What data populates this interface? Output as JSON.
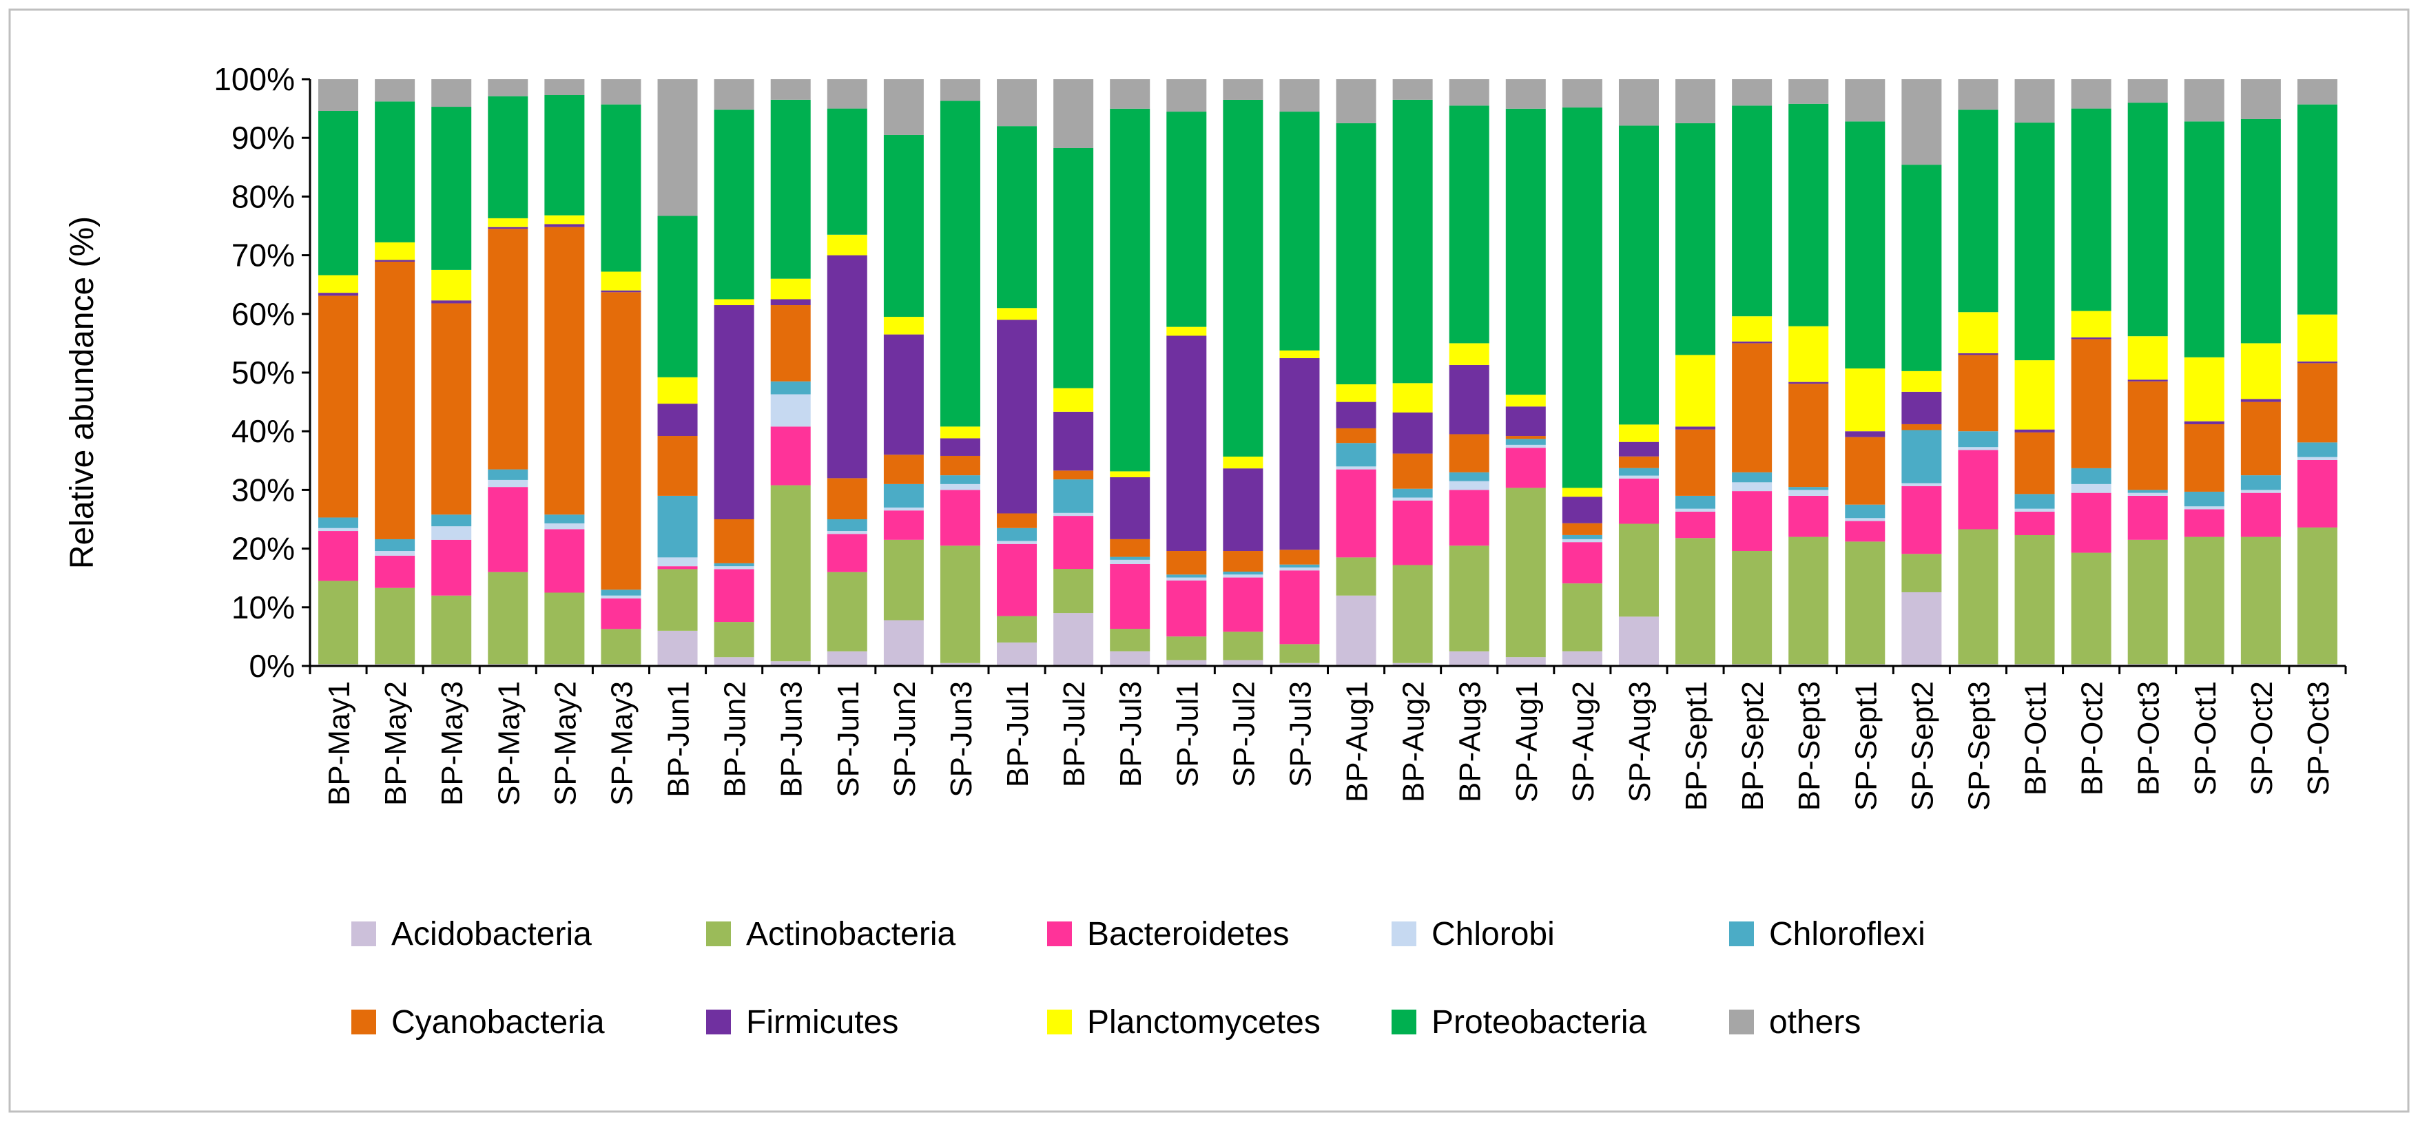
{
  "chart_data": {
    "type": "bar",
    "stacked": true,
    "normalized": true,
    "title": "",
    "xlabel": "",
    "ylabel": "Relative abundance (%)",
    "ylim": [
      0,
      100
    ],
    "ytick_values": [
      0,
      10,
      20,
      30,
      40,
      50,
      60,
      70,
      80,
      90,
      100
    ],
    "ytick_labels": [
      "0%",
      "10%",
      "20%",
      "30%",
      "40%",
      "50%",
      "60%",
      "70%",
      "80%",
      "90%",
      "100%"
    ],
    "grid": false,
    "legend_position": "bottom",
    "categories": [
      "BP-May1",
      "BP-May2",
      "BP-May3",
      "SP-May1",
      "SP-May2",
      "SP-May3",
      "BP-Jun1",
      "BP-Jun2",
      "BP-Jun3",
      "SP-Jun1",
      "SP-Jun2",
      "SP-Jun3",
      "BP-Jul1",
      "BP-Jul2",
      "BP-Jul3",
      "SP-Jul1",
      "SP-Jul2",
      "SP-Jul3",
      "BP-Aug1",
      "BP-Aug2",
      "BP-Aug3",
      "SP-Aug1",
      "SP-Aug2",
      "SP-Aug3",
      "BP-Sept1",
      "BP-Sept2",
      "BP-Sept3",
      "SP-Sept1",
      "SP-Sept2",
      "SP-Sept3",
      "BP-Oct1",
      "BP-Oct2",
      "BP-Oct3",
      "SP-Oct1",
      "SP-Oct2",
      "SP-Oct3"
    ],
    "series": [
      {
        "name": "Acidobacteria",
        "color": "#ccc0da",
        "values": [
          0.3,
          0.3,
          0.3,
          0.3,
          0.3,
          0.3,
          6,
          1.5,
          0.8,
          2.5,
          7.8,
          0.5,
          4,
          9,
          2.5,
          1,
          1,
          0.5,
          12,
          0.5,
          2.5,
          1.5,
          2.5,
          8.5,
          0.3,
          0.3,
          0.3,
          0.3,
          12.5,
          0.3,
          0.3,
          0.3,
          0.3,
          0.3,
          0.3,
          0.3
        ]
      },
      {
        "name": "Actinobacteria",
        "color": "#9bbb59",
        "values": [
          14.2,
          13,
          11.7,
          15.7,
          12.2,
          6,
          10.5,
          6,
          30,
          13.5,
          13.7,
          20,
          4.5,
          7.5,
          3.8,
          4,
          4.8,
          3.2,
          6.5,
          16.7,
          18,
          28.7,
          11.5,
          16,
          21.5,
          19.3,
          21.7,
          20.9,
          6.5,
          23,
          22,
          19,
          21.2,
          21.7,
          21.7,
          23.3
        ]
      },
      {
        "name": "Bacteroidetes",
        "color": "#ff3399",
        "values": [
          8.5,
          5.5,
          9.5,
          14.5,
          10.8,
          5.2,
          0.5,
          9,
          10,
          6.5,
          5,
          9.5,
          12.3,
          9,
          11,
          9.5,
          9.2,
          12.5,
          15,
          11,
          9.5,
          6.8,
          7,
          7.8,
          4.5,
          10.2,
          7,
          3.5,
          11.5,
          13.5,
          4,
          10.2,
          7.5,
          4.7,
          7.5,
          11.5
        ]
      },
      {
        "name": "Chlorobi",
        "color": "#c6d9f1",
        "values": [
          0.5,
          0.8,
          2.3,
          1.2,
          1,
          0.5,
          1.5,
          0.5,
          5.5,
          0.5,
          0.5,
          1,
          0.5,
          0.5,
          0.7,
          0.5,
          0.5,
          0.5,
          0.5,
          0.5,
          1.5,
          0.5,
          0.5,
          0.5,
          0.5,
          1.5,
          1,
          0.5,
          0.5,
          0.5,
          0.5,
          1.5,
          0.5,
          0.5,
          0.5,
          0.5
        ]
      },
      {
        "name": "Chloroflexi",
        "color": "#4bacc6",
        "values": [
          1.8,
          2,
          2,
          1.8,
          1.5,
          1,
          10.5,
          0.5,
          2.2,
          2,
          4,
          1.5,
          2.2,
          5.7,
          0.5,
          0.5,
          0.5,
          0.5,
          4,
          1.5,
          1.5,
          1,
          0.7,
          1.3,
          2.2,
          1.7,
          0.5,
          2.3,
          9,
          2.7,
          2.5,
          2.7,
          0.5,
          2.5,
          2.5,
          2.5
        ]
      },
      {
        "name": "Cyanobacteria",
        "color": "#e46c0a",
        "values": [
          37.8,
          47.3,
          36,
          41,
          49,
          50.7,
          10.2,
          7.5,
          13,
          7,
          5,
          3.3,
          2.5,
          1.5,
          3,
          4,
          3.5,
          2.5,
          2.5,
          6,
          6.5,
          0.5,
          2,
          2,
          11.3,
          22,
          17.6,
          11.5,
          1,
          13,
          10.5,
          22,
          18.5,
          11.5,
          12.5,
          13.5
        ]
      },
      {
        "name": "Firmicutes",
        "color": "#7030a0",
        "values": [
          0.5,
          0.3,
          0.5,
          0.3,
          0.5,
          0.3,
          5.5,
          36.5,
          1,
          38,
          20.5,
          3,
          33,
          10,
          10.5,
          36.5,
          14,
          32.5,
          4.5,
          7,
          11.8,
          5,
          4.5,
          2.5,
          0.5,
          0.3,
          0.3,
          1,
          5.5,
          0.3,
          0.5,
          0.3,
          0.3,
          0.5,
          0.5,
          0.3
        ]
      },
      {
        "name": "Planctomycetes",
        "color": "#ffff00",
        "values": [
          3,
          3,
          5.2,
          1.5,
          1.5,
          3.2,
          4.5,
          1,
          3.5,
          3.5,
          3,
          2,
          2,
          4,
          1,
          1.5,
          2,
          1.3,
          3,
          5,
          3.7,
          2,
          1.5,
          3,
          12.2,
          4.3,
          9.5,
          10.7,
          3.5,
          7,
          11.8,
          4.5,
          7.4,
          10.9,
          9.5,
          8
        ]
      },
      {
        "name": "Proteobacteria",
        "color": "#00b050",
        "values": [
          28,
          24,
          27.8,
          20.8,
          20.5,
          28.5,
          27.5,
          32.3,
          30.5,
          21.5,
          31,
          55.5,
          31,
          40.8,
          61.5,
          36.5,
          60.5,
          40.5,
          44.5,
          48.3,
          40.5,
          48.5,
          64.5,
          51.5,
          39.5,
          35.9,
          37.9,
          42.1,
          35,
          34.5,
          40.5,
          34.5,
          39.8,
          40.2,
          38.2,
          35.8
        ]
      },
      {
        "name": "others",
        "color": "#a6a6a6",
        "values": [
          5.4,
          3.8,
          4.7,
          2.9,
          2.7,
          4.3,
          23.3,
          5.2,
          3.5,
          5,
          9.5,
          3.7,
          8,
          11.7,
          5,
          5.5,
          3.5,
          5.5,
          7.5,
          3.5,
          4.5,
          5,
          4.8,
          8,
          7.5,
          4.5,
          4.2,
          7.2,
          14.5,
          5.2,
          7.4,
          5,
          4,
          7.2,
          6.8,
          4.3
        ]
      }
    ]
  }
}
